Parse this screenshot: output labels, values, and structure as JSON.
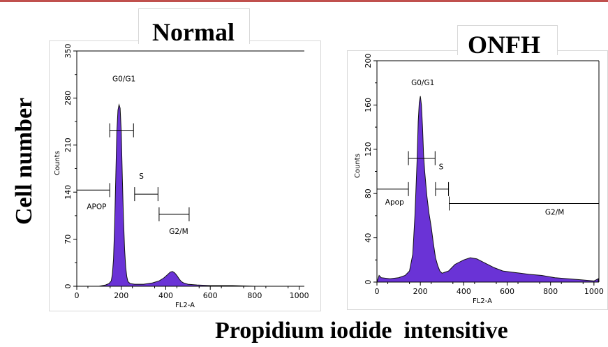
{
  "colors": {
    "fill": "#6a33d6",
    "stroke": "#111111",
    "topline": "#c0504d"
  },
  "titles": {
    "normal": "Normal",
    "onfh": "ONFH"
  },
  "ylabel": "Cell number",
  "xlabel": "Propidium iodide  intensitive",
  "chart_data": [
    {
      "type": "area",
      "title": "Normal",
      "xlabel": "FL2-A",
      "ylabel": "Counts",
      "xlim": [
        0,
        1023
      ],
      "ylim": [
        0,
        350
      ],
      "xticks": [
        0,
        200,
        400,
        600,
        800,
        1000
      ],
      "yticks": [
        0,
        70,
        140,
        210,
        280,
        350
      ],
      "y_tick_rotation": "vertical",
      "series": [
        {
          "x": [
            0,
            100,
            130,
            145,
            155,
            160,
            165,
            170,
            175,
            180,
            185,
            190,
            195,
            200,
            205,
            210,
            215,
            220,
            225,
            230,
            240,
            260,
            300,
            340,
            370,
            390,
            400,
            410,
            420,
            430,
            440,
            450,
            460,
            470,
            480,
            500,
            540,
            600,
            700,
            800,
            900,
            1000
          ],
          "y": [
            0,
            0,
            2,
            4,
            8,
            18,
            40,
            90,
            160,
            230,
            262,
            270,
            265,
            230,
            160,
            100,
            55,
            28,
            14,
            7,
            4,
            3,
            3,
            5,
            8,
            12,
            15,
            18,
            21,
            22,
            20,
            16,
            11,
            7,
            5,
            3,
            2,
            1,
            1,
            0,
            0,
            0
          ]
        }
      ],
      "gates": [
        {
          "label": "G0/G1",
          "x_range": [
            148,
            255
          ],
          "y": 232,
          "label_pos": [
            160,
            305
          ]
        },
        {
          "label": "S",
          "x_range": [
            260,
            365
          ],
          "y": 137,
          "label_pos": [
            280,
            160
          ]
        },
        {
          "label": "APOP",
          "x_range": [
            0,
            148
          ],
          "y": 143,
          "label_pos": [
            45,
            115
          ]
        },
        {
          "label": "G2/M",
          "x_range": [
            370,
            505
          ],
          "y": 107,
          "label_pos": [
            415,
            78
          ]
        }
      ]
    },
    {
      "type": "area",
      "title": "ONFH",
      "xlabel": "FL2-A",
      "ylabel": "Counts",
      "xlim": [
        0,
        1023
      ],
      "ylim": [
        0,
        200
      ],
      "xticks": [
        0,
        200,
        400,
        600,
        800,
        1000
      ],
      "yticks": [
        0,
        40,
        80,
        120,
        160,
        200
      ],
      "y_tick_rotation": "vertical",
      "series": [
        {
          "x": [
            0,
            10,
            20,
            60,
            100,
            130,
            150,
            165,
            175,
            185,
            190,
            195,
            200,
            205,
            210,
            215,
            220,
            230,
            240,
            250,
            260,
            270,
            280,
            290,
            300,
            330,
            360,
            400,
            430,
            460,
            500,
            540,
            580,
            620,
            660,
            700,
            760,
            820,
            880,
            940,
            1000,
            1020
          ],
          "y": [
            0,
            6,
            4,
            3,
            4,
            6,
            10,
            25,
            60,
            110,
            145,
            162,
            168,
            160,
            140,
            115,
            100,
            78,
            62,
            50,
            35,
            22,
            15,
            10,
            8,
            10,
            16,
            20,
            22,
            21,
            17,
            13,
            10,
            9,
            8,
            7,
            6,
            4,
            3,
            2,
            1,
            3
          ]
        }
      ],
      "gates": [
        {
          "label": "G0/G1",
          "x_range": [
            145,
            268
          ],
          "y": 112,
          "label_pos": [
            158,
            178
          ]
        },
        {
          "label": "S",
          "x_range": [
            270,
            330
          ],
          "y": 84,
          "label_pos": [
            285,
            102
          ]
        },
        {
          "label": "Apop",
          "x_range": [
            0,
            145
          ],
          "y": 84,
          "label_pos": [
            38,
            70
          ]
        },
        {
          "label": "G2/M",
          "x_range": [
            333,
            1023
          ],
          "y": 71,
          "label_pos": [
            775,
            61
          ]
        }
      ]
    }
  ]
}
